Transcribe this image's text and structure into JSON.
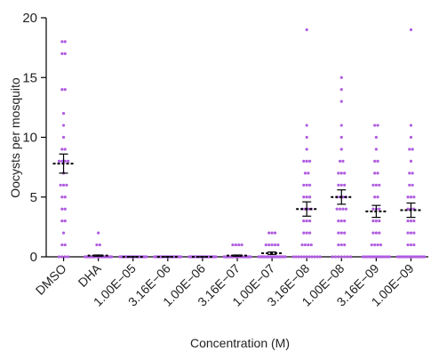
{
  "chart_data": {
    "type": "dot",
    "y_label": "Oocysts per mosquito",
    "x_label": "Concentration (M)",
    "ylim": [
      0,
      20
    ],
    "yticks": [
      0,
      5,
      10,
      15,
      20
    ],
    "point_color": "#b05ce0",
    "groups": [
      {
        "name": "DMSO",
        "mean": 7.8,
        "sem": 0.8,
        "points": [
          18,
          18,
          17,
          17,
          14,
          14,
          12,
          11,
          10,
          9,
          9,
          8,
          8,
          8,
          8,
          7,
          6,
          6,
          6,
          5,
          5,
          4,
          4,
          3,
          3,
          2,
          1,
          1,
          0,
          0,
          0,
          0
        ]
      },
      {
        "name": "DHA",
        "mean": 0.1,
        "sem": 0.05,
        "points": [
          2,
          1,
          1,
          0,
          0,
          0,
          0,
          0,
          0,
          0,
          0,
          0,
          0,
          0,
          0,
          0,
          0,
          0,
          0,
          0,
          0,
          0,
          0,
          0,
          0,
          0,
          0,
          0,
          0,
          0
        ]
      },
      {
        "name": "1.00E−05",
        "mean": 0,
        "sem": 0,
        "points": [
          0,
          0,
          0,
          0,
          0,
          0,
          0,
          0,
          0,
          0,
          0,
          0,
          0,
          0,
          0,
          0,
          0,
          0,
          0,
          0,
          0,
          0,
          0,
          0,
          0,
          0,
          0,
          0,
          0,
          0
        ]
      },
      {
        "name": "3.16E−06",
        "mean": 0,
        "sem": 0,
        "points": [
          0,
          0,
          0,
          0,
          0,
          0,
          0,
          0,
          0,
          0,
          0,
          0,
          0,
          0,
          0,
          0,
          0,
          0,
          0,
          0,
          0,
          0,
          0,
          0,
          0,
          0,
          0,
          0,
          0,
          0
        ]
      },
      {
        "name": "1.00E−06",
        "mean": 0,
        "sem": 0,
        "points": [
          0,
          0,
          0,
          0,
          0,
          0,
          0,
          0,
          0,
          0,
          0,
          0,
          0,
          0,
          0,
          0,
          0,
          0,
          0,
          0,
          0,
          0,
          0,
          0,
          0,
          0,
          0,
          0,
          0,
          0
        ]
      },
      {
        "name": "3.16E−07",
        "mean": 0.1,
        "sem": 0.05,
        "points": [
          1,
          1,
          1,
          1,
          0,
          0,
          0,
          0,
          0,
          0,
          0,
          0,
          0,
          0,
          0,
          0,
          0,
          0,
          0,
          0,
          0,
          0,
          0,
          0,
          0,
          0,
          0,
          0,
          0,
          0,
          0,
          0,
          0,
          0,
          0,
          0
        ]
      },
      {
        "name": "1.00E−07",
        "mean": 0.3,
        "sem": 0.1,
        "points": [
          2,
          2,
          2,
          1,
          1,
          1,
          1,
          1,
          0,
          0,
          0,
          0,
          0,
          0,
          0,
          0,
          0,
          0,
          0,
          0,
          0,
          0,
          0,
          0,
          0,
          0,
          0,
          0,
          0,
          0,
          0,
          0,
          0,
          0,
          0,
          0
        ]
      },
      {
        "name": "3.16E−08",
        "mean": 4,
        "sem": 0.6,
        "points": [
          19,
          11,
          10,
          9,
          8,
          8,
          8,
          7,
          7,
          6,
          6,
          6,
          5,
          5,
          5,
          4,
          4,
          4,
          4,
          3,
          3,
          3,
          2,
          2,
          2,
          1,
          1,
          1,
          1,
          0,
          0,
          0,
          0,
          0,
          0,
          0,
          0,
          0,
          0,
          0
        ]
      },
      {
        "name": "1.00E−08",
        "mean": 5,
        "sem": 0.6,
        "points": [
          15,
          14,
          13,
          11,
          10,
          9,
          8,
          8,
          7,
          7,
          7,
          6,
          6,
          6,
          5,
          5,
          5,
          5,
          4,
          4,
          4,
          4,
          3,
          3,
          3,
          2,
          2,
          2,
          1,
          1,
          1,
          0,
          0,
          0,
          0,
          0,
          0,
          0
        ]
      },
      {
        "name": "3.16E−09",
        "mean": 3.8,
        "sem": 0.5,
        "points": [
          11,
          11,
          10,
          9,
          8,
          8,
          7,
          7,
          6,
          6,
          6,
          5,
          5,
          4,
          4,
          4,
          3,
          3,
          3,
          2,
          2,
          2,
          1,
          1,
          1,
          1,
          0,
          0,
          0,
          0,
          0,
          0,
          0,
          0,
          0,
          0,
          0,
          0,
          0,
          0
        ]
      },
      {
        "name": "1.00E−09",
        "mean": 3.9,
        "sem": 0.6,
        "points": [
          19,
          11,
          10,
          9,
          9,
          8,
          7,
          7,
          6,
          6,
          5,
          5,
          5,
          4,
          4,
          4,
          3,
          3,
          3,
          2,
          2,
          2,
          1,
          1,
          1,
          0,
          0,
          0,
          0,
          0,
          0,
          0,
          0,
          0,
          0,
          0,
          0,
          0,
          0,
          0
        ]
      }
    ]
  }
}
